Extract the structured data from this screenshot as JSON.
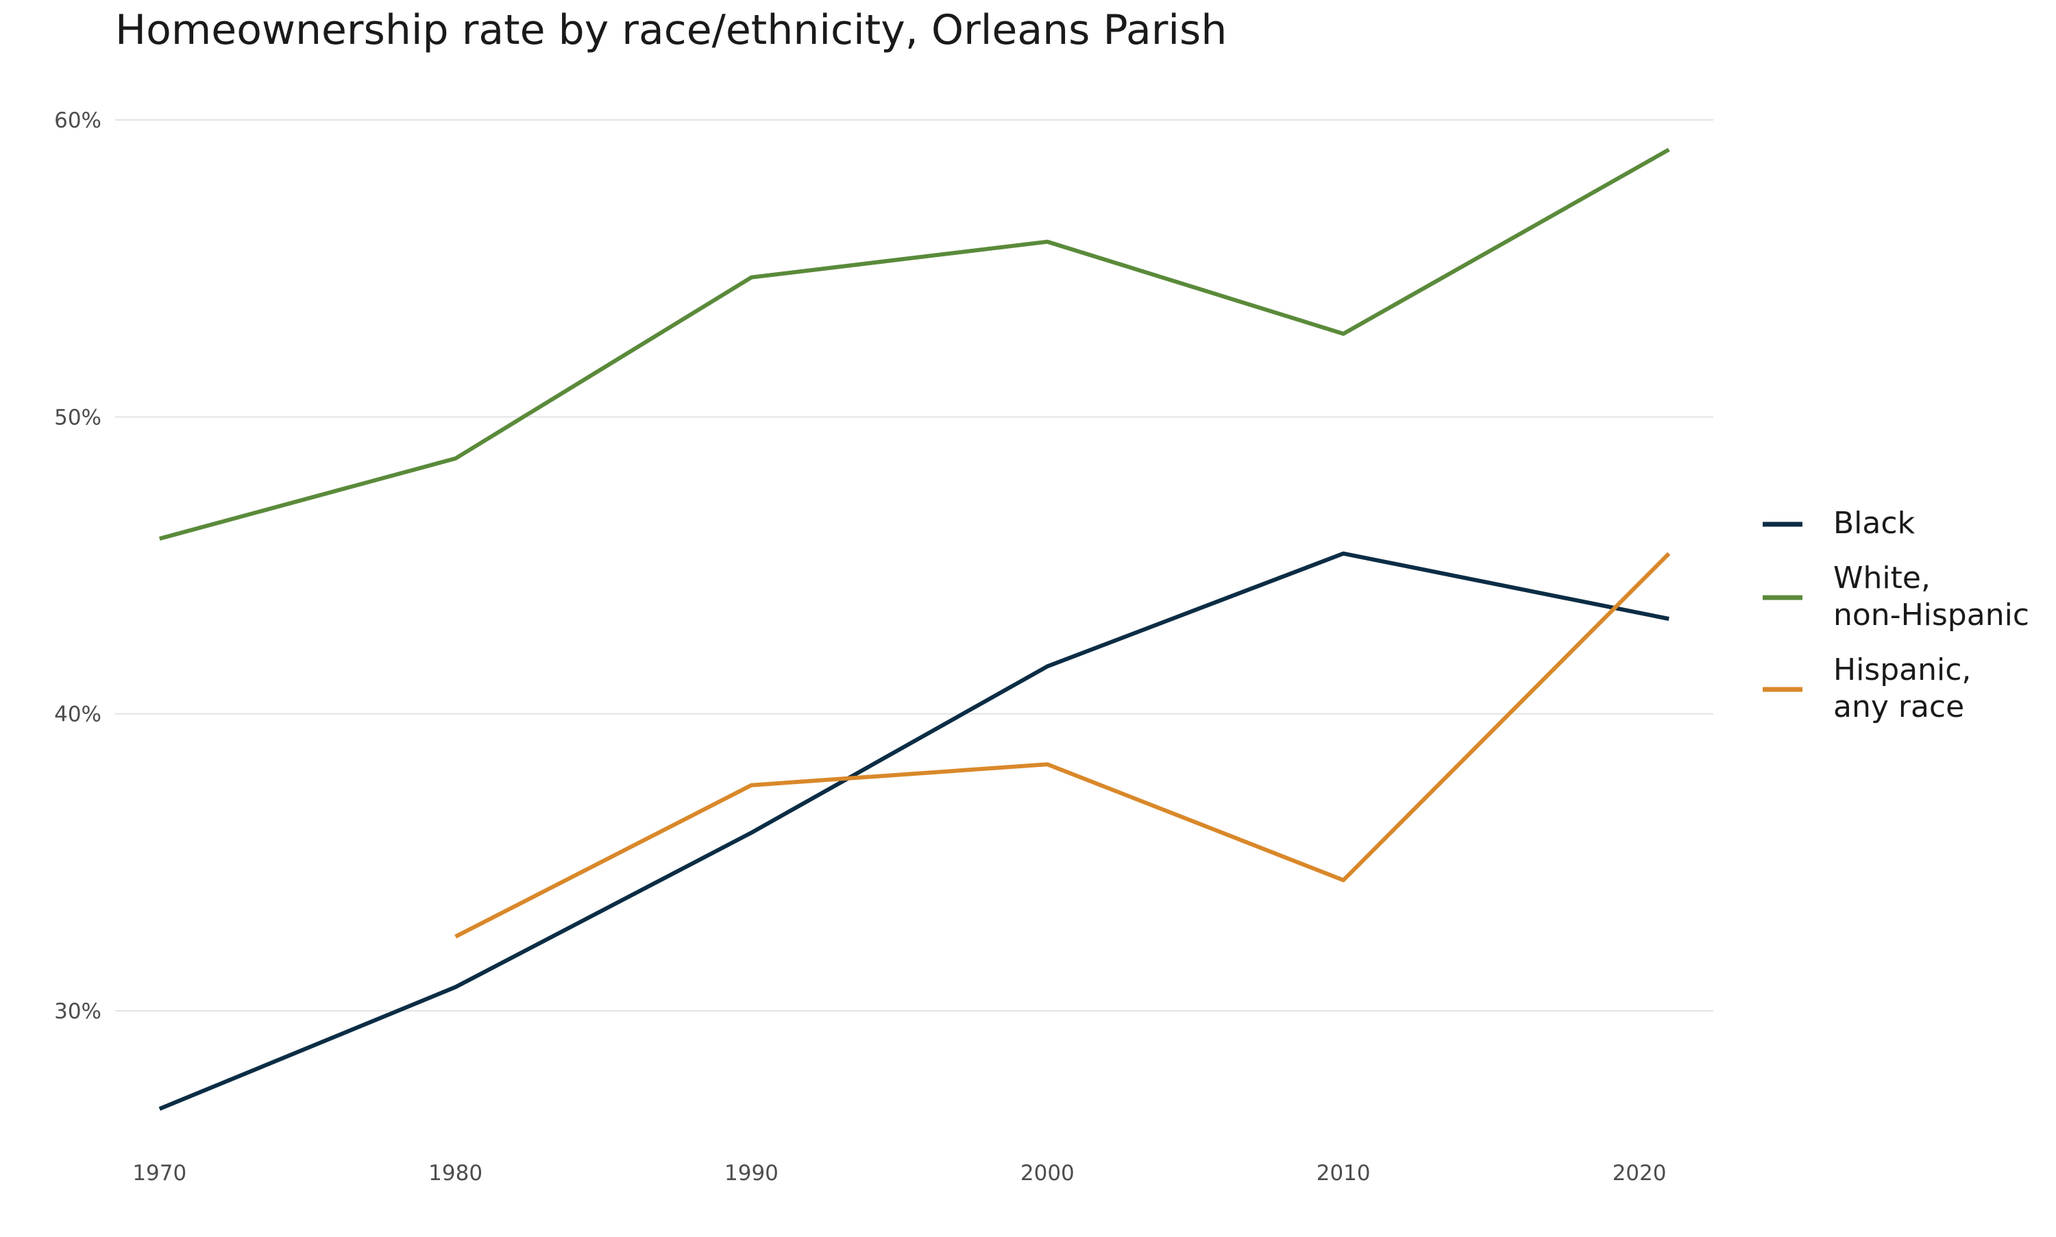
{
  "chart_data": {
    "type": "line",
    "title": "Homeownership rate by race/ethnicity, Orleans Parish",
    "xlabel": "",
    "ylabel": "",
    "x_ticks": [
      1970,
      1980,
      1990,
      2000,
      2010,
      2020
    ],
    "x_tick_labels": [
      "1970",
      "1980",
      "1990",
      "2000",
      "2010",
      "2020"
    ],
    "xlim": [
      1968.5,
      2022.5
    ],
    "y_ticks": [
      30,
      40,
      50,
      60
    ],
    "y_tick_labels": [
      "30%",
      "40%",
      "50%",
      "60%"
    ],
    "ylim": [
      25.5,
      61.5
    ],
    "grid": "horizontal",
    "legend_position": "right",
    "series": [
      {
        "name": "Black",
        "label_lines": [
          "Black"
        ],
        "color": "#0b2d45",
        "points": [
          [
            1970,
            26.7
          ],
          [
            1980,
            30.8
          ],
          [
            1990,
            36.0
          ],
          [
            2000,
            41.6
          ],
          [
            2010,
            45.4
          ],
          [
            2021,
            43.2
          ]
        ]
      },
      {
        "name": "White, non-Hispanic",
        "label_lines": [
          "White,",
          "non-Hispanic"
        ],
        "color": "#5a8a3a",
        "points": [
          [
            1970,
            45.9
          ],
          [
            1980,
            48.6
          ],
          [
            1990,
            54.7
          ],
          [
            2000,
            55.9
          ],
          [
            2010,
            52.8
          ],
          [
            2021,
            59.0
          ]
        ]
      },
      {
        "name": "Hispanic, any race",
        "label_lines": [
          "Hispanic,",
          "any race"
        ],
        "color": "#d9882a",
        "points": [
          [
            1980,
            32.5
          ],
          [
            1990,
            37.6
          ],
          [
            2000,
            38.3
          ],
          [
            2010,
            34.4
          ],
          [
            2021,
            45.4
          ]
        ]
      }
    ]
  }
}
